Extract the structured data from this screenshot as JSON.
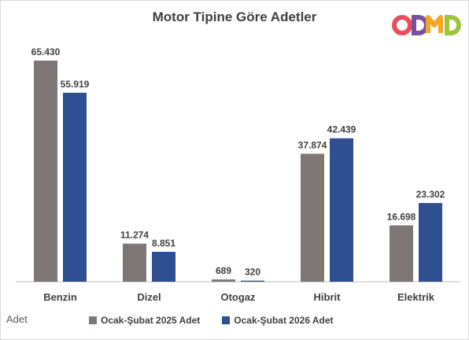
{
  "chart_data": {
    "type": "bar",
    "title": "Motor Tipine Göre Adetler",
    "categories": [
      "Benzin",
      "Dizel",
      "Otogaz",
      "Hibrit",
      "Elektrik"
    ],
    "series": [
      {
        "name": "Ocak-Şubat 2025 Adet",
        "values": [
          65430,
          11274,
          689,
          37874,
          16698
        ],
        "labels": [
          "65.430",
          "11.274",
          "689",
          "37.874",
          "16.698"
        ],
        "color": "#7f7776"
      },
      {
        "name": "Ocak-Şubat 2026 Adet",
        "values": [
          55919,
          8851,
          320,
          42439,
          23302
        ],
        "labels": [
          "55.919",
          "8.851",
          "320",
          "42.439",
          "23.302"
        ],
        "color": "#2e4f91"
      }
    ],
    "unit_label": "Adet",
    "ylim": [
      0,
      65430
    ],
    "grid": false,
    "legend_position": "bottom"
  },
  "logo": {
    "text": "ODMD",
    "colors": [
      "#e94f5b",
      "#7b4fa0",
      "#f6a623",
      "#9bc53d"
    ]
  }
}
